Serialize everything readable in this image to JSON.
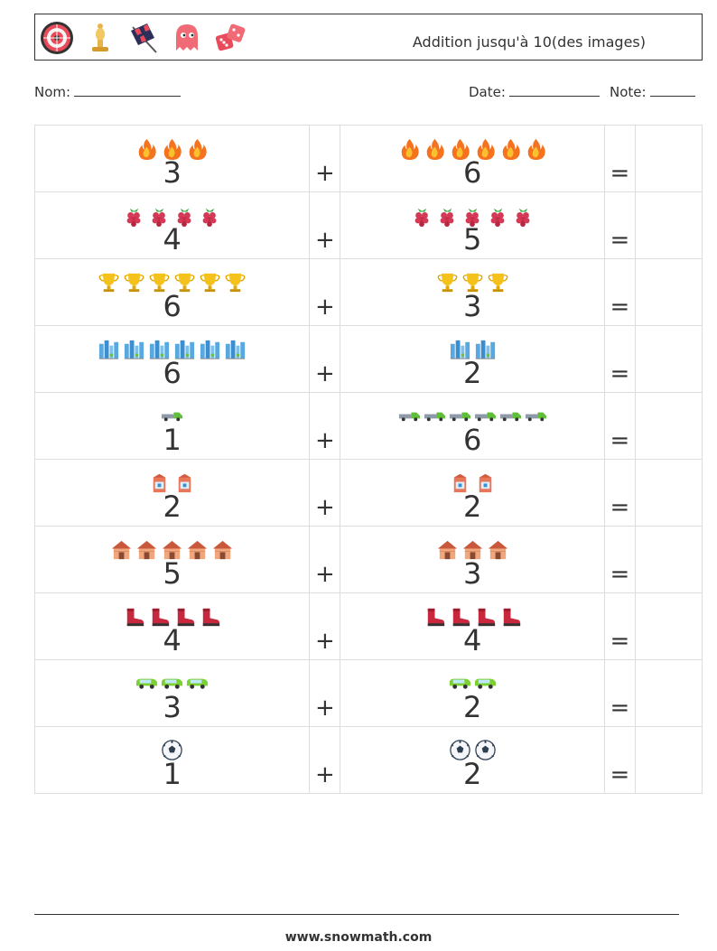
{
  "header": {
    "title": "Addition jusqu'à 10(des images)",
    "icons": [
      "dartboard-icon",
      "chess-bishop-icon",
      "checkered-flag-icon",
      "ghost-icon",
      "dice-icon"
    ]
  },
  "info": {
    "name_label": "Nom:",
    "date_label": "Date:",
    "note_label": "Note:"
  },
  "problems": [
    {
      "icon": "fire",
      "a": 3,
      "b": 6
    },
    {
      "icon": "raspberry",
      "a": 4,
      "b": 5
    },
    {
      "icon": "trophy",
      "a": 6,
      "b": 3
    },
    {
      "icon": "city",
      "a": 6,
      "b": 2
    },
    {
      "icon": "truck",
      "a": 1,
      "b": 6
    },
    {
      "icon": "milk",
      "a": 2,
      "b": 2
    },
    {
      "icon": "house",
      "a": 5,
      "b": 3
    },
    {
      "icon": "boot",
      "a": 4,
      "b": 4
    },
    {
      "icon": "car",
      "a": 3,
      "b": 2
    },
    {
      "icon": "ball",
      "a": 1,
      "b": 2
    }
  ],
  "plus_sign": "+",
  "equals_sign": "=",
  "footer": "www.snowmath.com"
}
